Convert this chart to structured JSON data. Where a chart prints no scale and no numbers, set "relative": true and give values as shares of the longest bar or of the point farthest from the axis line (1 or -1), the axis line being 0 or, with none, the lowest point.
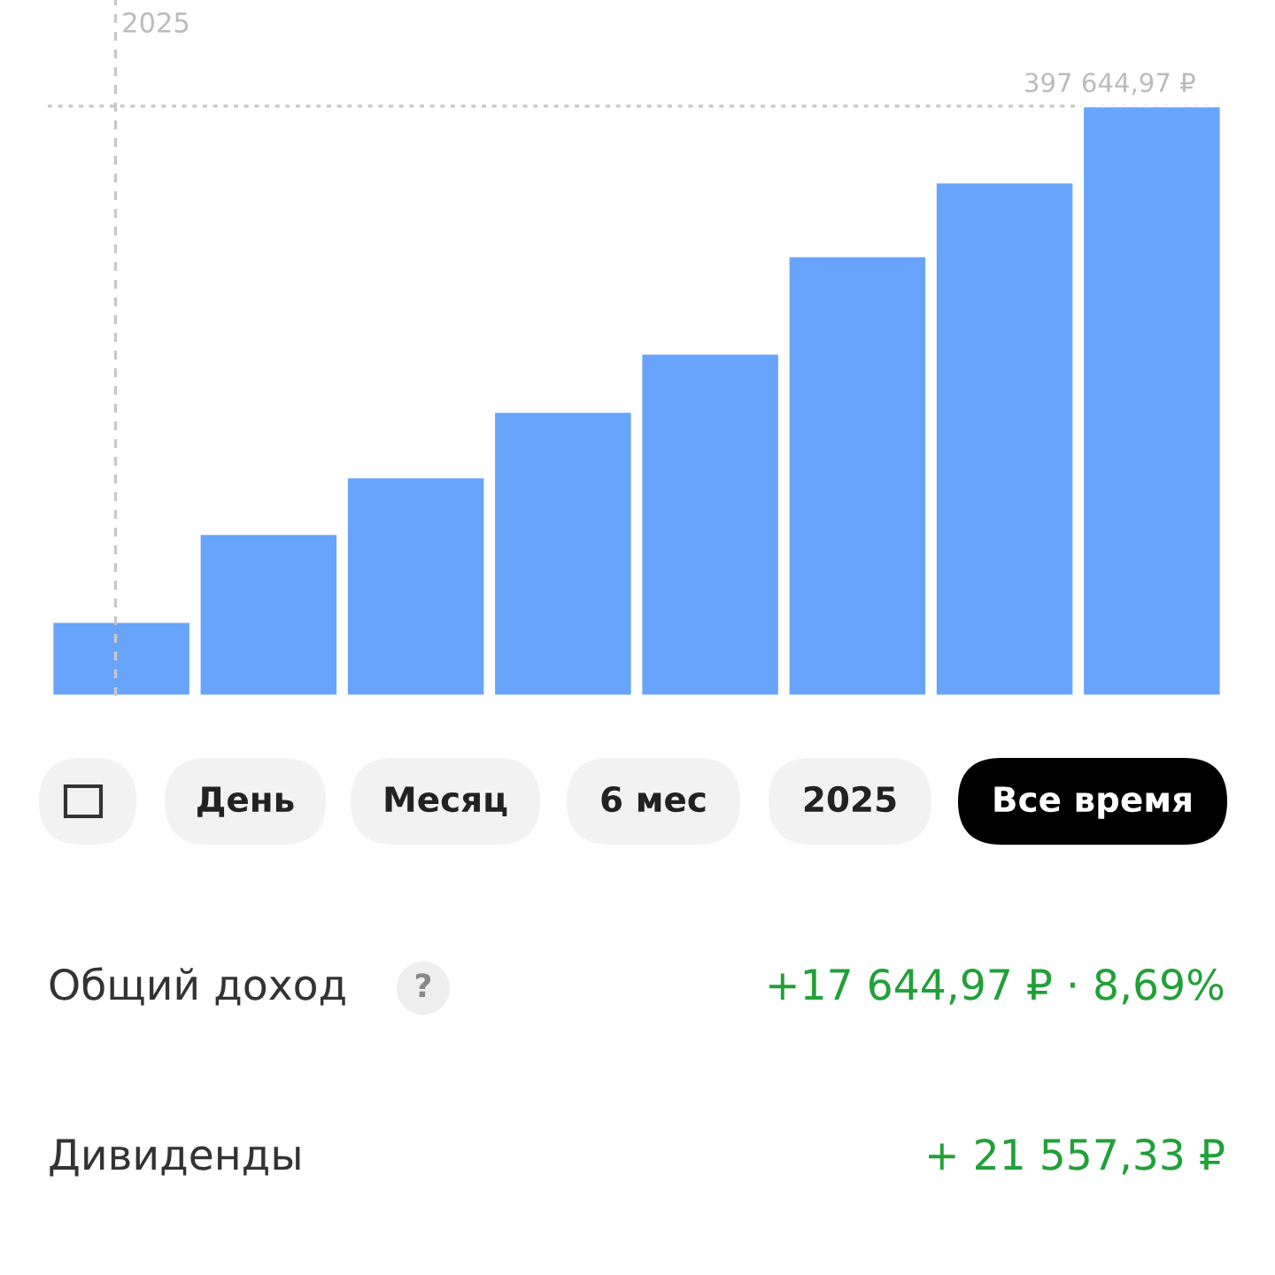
{
  "chart_data": {
    "type": "bar",
    "relative": true,
    "categories": [
      null,
      null,
      null,
      null,
      null,
      null,
      null,
      null
    ],
    "values": [
      0.126,
      0.275,
      0.371,
      0.482,
      0.581,
      0.746,
      0.871,
      1
    ],
    "color": "#68a3fc",
    "ref_lines": [
      {
        "axis": "y",
        "value": 1,
        "label": "397 644,97 ₽",
        "color": "#c8c8c8",
        "line_style": "dotted"
      }
    ],
    "annotations": [
      "День",
      "Месяц",
      "6 мес",
      "2025",
      "Все время",
      "Общий доход",
      "?",
      "+17 644,97 ₽ · 8,69%",
      "Дивиденды",
      "+ 21 557,33 ₽",
      "2025"
    ]
  }
}
